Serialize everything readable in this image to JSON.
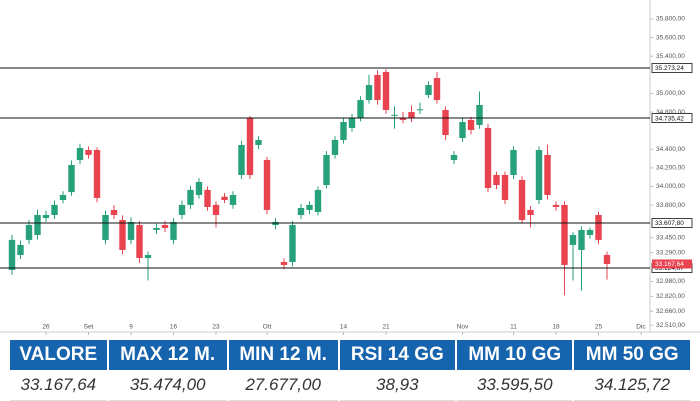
{
  "chart_data": {
    "type": "candlestick",
    "ylim": [
      32512,
      35950
    ],
    "yticks": [
      {
        "value": 35800,
        "label": "35.800,00"
      },
      {
        "value": 35600,
        "label": "35.600,00"
      },
      {
        "value": 35400,
        "label": "35.400,00"
      },
      {
        "value": 35000,
        "label": "35.000,00"
      },
      {
        "value": 34800,
        "label": "34.800,00"
      },
      {
        "value": 34400,
        "label": "34.400,00"
      },
      {
        "value": 34200,
        "label": "34.200,00"
      },
      {
        "value": 34000,
        "label": "34.000,00"
      },
      {
        "value": 33800,
        "label": "33.800,00"
      },
      {
        "value": 33450,
        "label": "33.450,00"
      },
      {
        "value": 33290,
        "label": "33.290,00"
      },
      {
        "value": 32980,
        "label": "32.980,00"
      },
      {
        "value": 32820,
        "label": "32.820,00"
      },
      {
        "value": 32660,
        "label": "32.660,00"
      },
      {
        "value": 32510,
        "label": "32.510,00"
      }
    ],
    "xticks": [
      {
        "value": 4,
        "label": "26"
      },
      {
        "value": 9,
        "label": "Set"
      },
      {
        "value": 14,
        "label": "9"
      },
      {
        "value": 19,
        "label": "16"
      },
      {
        "value": 24,
        "label": "23"
      },
      {
        "value": 30,
        "label": "Ott"
      },
      {
        "value": 39,
        "label": "14"
      },
      {
        "value": 44,
        "label": "21"
      },
      {
        "value": 53,
        "label": "Nov"
      },
      {
        "value": 59,
        "label": "11"
      },
      {
        "value": 64,
        "label": "18"
      },
      {
        "value": 69,
        "label": "25"
      },
      {
        "value": 74,
        "label": "Dic"
      }
    ],
    "up_color": "#26a17b",
    "down_color": "#e8434f",
    "open": [
      33103,
      33264,
      33426,
      33479,
      33662,
      33694,
      33855,
      33940,
      34285,
      34392,
      34392,
      33426,
      33748,
      33640,
      33426,
      33586,
      33232,
      33533,
      33586,
      33426,
      33694,
      33802,
      33909,
      33963,
      33802,
      33890,
      33802,
      34124,
      34736,
      34446,
      34285,
      33586,
      33189,
      33189,
      33694,
      33748,
      33726,
      34016,
      34339,
      34500,
      34629,
      34736,
      34929,
      35198,
      35230,
      34768,
      34736,
      34800,
      34822,
      34983,
      35166,
      34822,
      34285,
      34521,
      34715,
      34661,
      34629,
      34124,
      34124,
      34124,
      34070,
      33748,
      33855,
      34339,
      33802,
      33802,
      33372,
      33318,
      33479,
      33694,
      33264
    ],
    "high": [
      33480,
      33420,
      33640,
      33750,
      33740,
      33850,
      33950,
      34280,
      34460,
      34430,
      34420,
      33740,
      33800,
      33690,
      33670,
      33630,
      33300,
      33600,
      33630,
      33660,
      33850,
      34010,
      34090,
      34000,
      33840,
      33930,
      33950,
      34490,
      34760,
      34540,
      34320,
      33660,
      33230,
      33630,
      33810,
      33840,
      34000,
      34380,
      34540,
      34730,
      34780,
      34970,
      35200,
      35250,
      35260,
      34860,
      34800,
      34870,
      34900,
      35130,
      35230,
      34860,
      34380,
      34730,
      34750,
      35020,
      34670,
      34160,
      34160,
      34430,
      34110,
      33790,
      34430,
      34450,
      33840,
      33840,
      33510,
      33570,
      33560,
      33730,
      33300
    ],
    "low": [
      33050,
      33220,
      33380,
      33430,
      33620,
      33650,
      33820,
      33900,
      34240,
      34300,
      33830,
      33380,
      33650,
      33270,
      33380,
      33180,
      32990,
      33490,
      33510,
      33380,
      33650,
      33760,
      33870,
      33740,
      33560,
      33820,
      33760,
      34080,
      34080,
      34400,
      33700,
      33540,
      33110,
      33140,
      33650,
      33700,
      33690,
      33980,
      34300,
      34460,
      34590,
      34700,
      34890,
      34880,
      34780,
      34620,
      34680,
      34690,
      34780,
      34950,
      34890,
      34500,
      34240,
      34480,
      34560,
      34620,
      33940,
      33970,
      33810,
      34080,
      33600,
      33560,
      33810,
      33860,
      33740,
      32830,
      32990,
      32880,
      33440,
      33380,
      33000
    ],
    "close": [
      33426,
      33372,
      33586,
      33694,
      33694,
      33802,
      33909,
      34231,
      34414,
      34339,
      33877,
      33694,
      33694,
      33318,
      33619,
      33232,
      33264,
      33554,
      33554,
      33619,
      33802,
      33963,
      34049,
      33780,
      33694,
      33855,
      33909,
      34446,
      34124,
      34500,
      33748,
      33619,
      33157,
      33586,
      33769,
      33802,
      33963,
      34339,
      34500,
      34693,
      34736,
      34929,
      35090,
      34929,
      34822,
      34770,
      34715,
      34736,
      34830,
      35090,
      34929,
      34553,
      34339,
      34693,
      34607,
      34876,
      33984,
      34016,
      33855,
      34392,
      33640,
      33694,
      34392,
      33909,
      33780,
      33157,
      33479,
      33533,
      33533,
      33426,
      33167.64
    ],
    "levels": [
      {
        "value": 35273.24,
        "label": "35.273,24"
      },
      {
        "value": 34735.42,
        "label": "34.735,42"
      },
      {
        "value": 33607.8,
        "label": "33.607,80"
      },
      {
        "value": 33124.67,
        "label": "33.124,67"
      }
    ],
    "last": {
      "value": 33167.64,
      "label": "33.167,64"
    }
  },
  "table": {
    "headers": [
      "VALORE",
      "MAX 12 M.",
      "MIN 12 M.",
      "RSI 14 GG",
      "MM 10 GG",
      "MM 50 GG"
    ],
    "values": [
      "33.167,64",
      "35.474,00",
      "27.677,00",
      "38,93",
      "33.595,50",
      "34.125,72"
    ]
  }
}
